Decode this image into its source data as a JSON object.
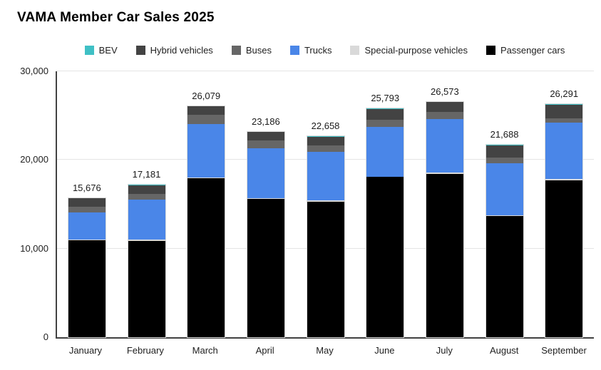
{
  "title": "VAMA Member Car Sales 2025",
  "legend": [
    {
      "label": "BEV",
      "color": "#3fc0c5"
    },
    {
      "label": "Hybrid vehicles",
      "color": "#434343"
    },
    {
      "label": "Buses",
      "color": "#666666"
    },
    {
      "label": "Trucks",
      "color": "#4a86e8"
    },
    {
      "label": "Special-purpose vehicles",
      "color": "#d9d9d9"
    },
    {
      "label": "Passenger cars",
      "color": "#000000"
    }
  ],
  "chart_data": {
    "type": "bar",
    "stacked": true,
    "title": "VAMA Member Car Sales 2025",
    "categories": [
      "January",
      "February",
      "March",
      "April",
      "May",
      "June",
      "July",
      "August",
      "September"
    ],
    "series": [
      {
        "name": "Passenger cars",
        "color": "#000000",
        "values": [
          10920,
          10880,
          17900,
          15600,
          15270,
          18060,
          18400,
          13700,
          17680
        ]
      },
      {
        "name": "Special-purpose vehicles",
        "color": "#d9d9d9",
        "values": [
          110,
          130,
          120,
          110,
          180,
          60,
          190,
          90,
          170
        ]
      },
      {
        "name": "Trucks",
        "color": "#4a86e8",
        "values": [
          3060,
          4540,
          6020,
          5640,
          5430,
          5630,
          5990,
          5810,
          6390
        ]
      },
      {
        "name": "Buses",
        "color": "#666666",
        "values": [
          620,
          650,
          1020,
          890,
          730,
          750,
          830,
          670,
          490
        ]
      },
      {
        "name": "Hybrid vehicles",
        "color": "#434343",
        "values": [
          940,
          960,
          990,
          920,
          1020,
          1260,
          1130,
          1390,
          1530
        ]
      },
      {
        "name": "BEV",
        "color": "#3fc0c5",
        "values": [
          26,
          21,
          29,
          26,
          28,
          33,
          33,
          28,
          31
        ]
      }
    ],
    "totals": [
      15676,
      17181,
      26079,
      23186,
      22658,
      25793,
      26573,
      21688,
      26291
    ],
    "total_labels": [
      "15,676",
      "17,181",
      "26,079",
      "23,186",
      "22,658",
      "25,793",
      "26,573",
      "21,688",
      "26,291"
    ],
    "xlabel": "",
    "ylabel": "",
    "ylim": [
      0,
      30000
    ],
    "yticks": [
      0,
      10000,
      20000,
      30000
    ],
    "ytick_labels": [
      "0",
      "10,000",
      "20,000",
      "30,000"
    ],
    "grid": true,
    "legend_position": "top"
  }
}
